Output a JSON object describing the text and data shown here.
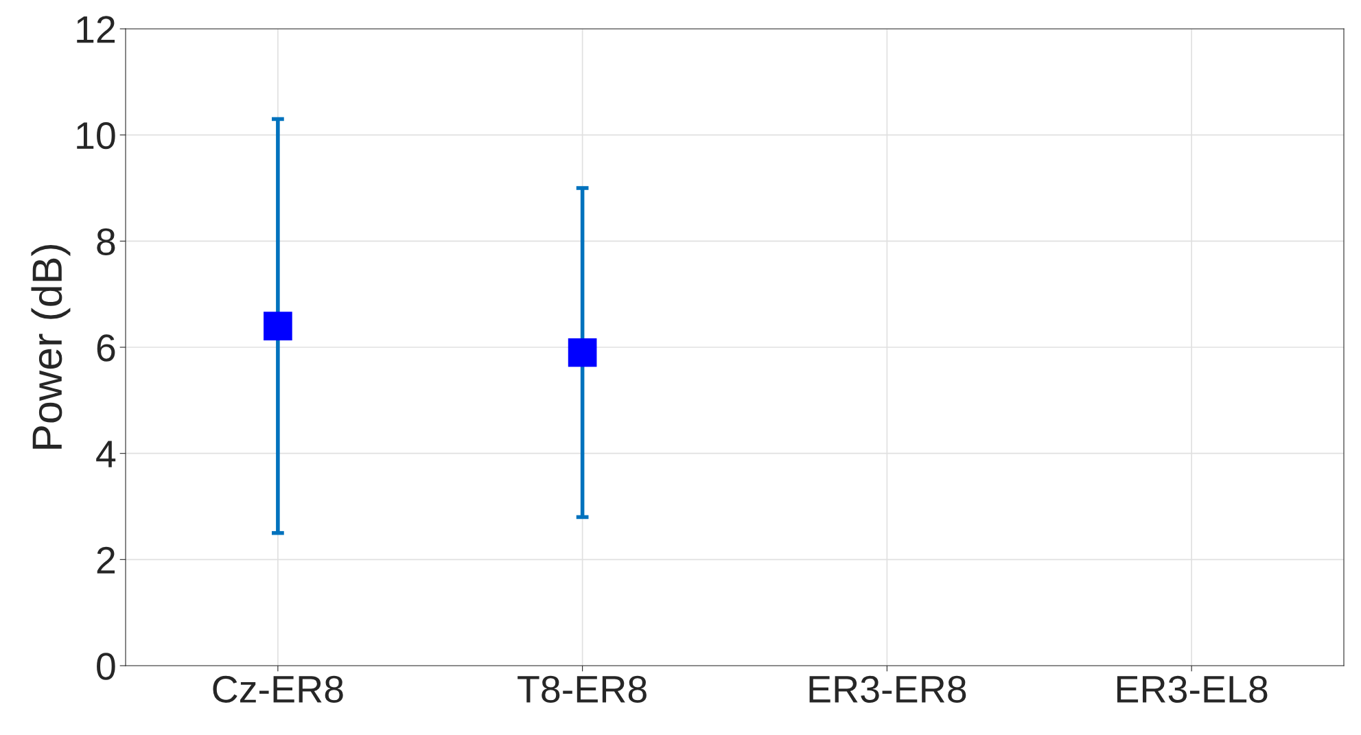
{
  "chart_data": {
    "type": "scatter",
    "ylabel": "Power (dB)",
    "categories": [
      "Cz-ER8",
      "T8-ER8",
      "ER3-ER8",
      "ER3-EL8"
    ],
    "series": [
      {
        "color": "#0000ff",
        "values": [
          6.4,
          5.9,
          null,
          null
        ],
        "errors": [
          [
            2.5,
            10.3
          ],
          [
            2.8,
            9.0
          ],
          null,
          null
        ]
      }
    ],
    "marker": "square",
    "ylim": [
      0,
      12
    ],
    "yticks": [
      0,
      2,
      4,
      6,
      8,
      10,
      12
    ],
    "grid": true
  }
}
